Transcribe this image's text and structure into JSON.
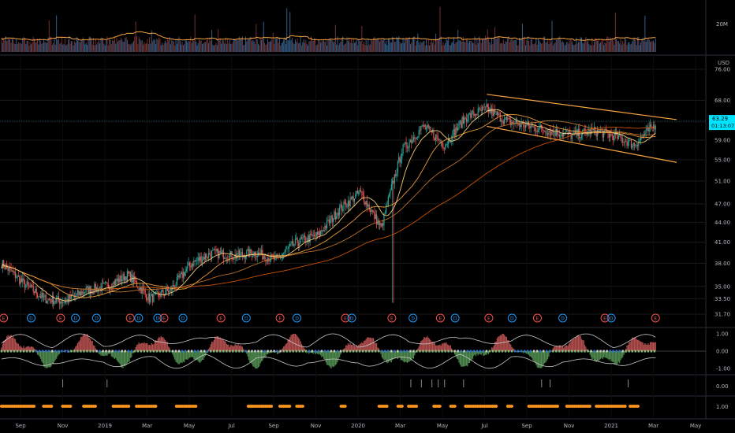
{
  "chart_data": {
    "type": "line",
    "currency": "USD",
    "price_axis": {
      "ticks": [
        31.7,
        33.5,
        35.0,
        38.0,
        41.0,
        44.0,
        47.0,
        51.0,
        55.0,
        59.0,
        63.0,
        68.0,
        76.0
      ],
      "labels": [
        "31.70",
        "33.50",
        "35.00",
        "38.00",
        "41.00",
        "44.00",
        "47.00",
        "51.00",
        "55.00",
        "59.00",
        "63.00",
        "68.00",
        "76.00"
      ],
      "scale": "log"
    },
    "last_price": {
      "value": "63.29",
      "countdown": "01:13:07",
      "color": "#00e5ff"
    },
    "volume_axis": {
      "label": "20M"
    },
    "oscillator_axis": {
      "labels": [
        "1.00",
        "0.00",
        "-1.00"
      ]
    },
    "signal_axis": {
      "label": "0.00"
    },
    "dots_axis": {
      "label": "1.00"
    },
    "time_axis": {
      "labels": [
        "Sep",
        "Nov",
        "2019",
        "Mar",
        "May",
        "Jul",
        "Sep",
        "Nov",
        "2020",
        "Mar",
        "May",
        "Jul",
        "Sep",
        "Nov",
        "2021",
        "Mar",
        "May"
      ]
    },
    "price_series": {
      "name": "",
      "x_month_index": [
        0,
        1,
        2,
        3,
        4,
        5,
        6,
        7,
        8,
        9,
        10,
        11,
        12,
        13,
        14,
        15,
        16,
        17,
        18,
        19,
        20,
        21,
        22,
        23,
        24,
        25,
        26,
        27,
        28,
        29,
        30,
        31
      ],
      "close": [
        38.0,
        35.5,
        33.5,
        33.2,
        34.5,
        35.0,
        36.5,
        33.5,
        34.5,
        38.0,
        39.5,
        39.0,
        39.5,
        38.5,
        41.0,
        42.0,
        46.0,
        49.0,
        43.0,
        57.0,
        62.0,
        58.0,
        64.0,
        66.0,
        63.0,
        62.0,
        61.0,
        60.0,
        61.0,
        60.0,
        58.0,
        62.5
      ]
    },
    "channel": {
      "upper": {
        "from": [
          23.0,
          69.5
        ],
        "to": [
          32.0,
          63.5
        ]
      },
      "lower": {
        "from": [
          23.0,
          62.0
        ],
        "to": [
          32.0,
          54.5
        ]
      },
      "color": "#f7a340"
    },
    "moving_averages": [
      {
        "period": 200,
        "color": "#d35400"
      },
      {
        "period": 100,
        "color": "#c0752e"
      },
      {
        "period": 50,
        "color": "#f2a33c"
      },
      {
        "period": 20,
        "color": "#ffd580"
      }
    ],
    "events": {
      "earnings_label": "E",
      "dividend_label": "D",
      "items": [
        {
          "m": 0.1,
          "t": "E"
        },
        {
          "m": 1.4,
          "t": "D"
        },
        {
          "m": 2.8,
          "t": "E"
        },
        {
          "m": 3.5,
          "t": "D"
        },
        {
          "m": 4.5,
          "t": "D"
        },
        {
          "m": 6.1,
          "t": "E"
        },
        {
          "m": 6.5,
          "t": "D"
        },
        {
          "m": 7.4,
          "t": "D"
        },
        {
          "m": 7.7,
          "t": "E"
        },
        {
          "m": 8.6,
          "t": "D"
        },
        {
          "m": 10.4,
          "t": "E"
        },
        {
          "m": 11.6,
          "t": "D"
        },
        {
          "m": 13.2,
          "t": "E"
        },
        {
          "m": 14.0,
          "t": "D"
        },
        {
          "m": 16.3,
          "t": "E"
        },
        {
          "m": 16.6,
          "t": "D"
        },
        {
          "m": 18.5,
          "t": "E"
        },
        {
          "m": 19.5,
          "t": "D"
        },
        {
          "m": 20.8,
          "t": "E"
        },
        {
          "m": 21.5,
          "t": "D"
        },
        {
          "m": 23.1,
          "t": "E"
        },
        {
          "m": 24.2,
          "t": "D"
        },
        {
          "m": 25.4,
          "t": "E"
        },
        {
          "m": 26.6,
          "t": "D"
        },
        {
          "m": 28.6,
          "t": "E"
        },
        {
          "m": 28.9,
          "t": "D"
        },
        {
          "m": 31.0,
          "t": "E"
        }
      ]
    },
    "colors": {
      "background": "#000000",
      "grid": "#1a1a1a",
      "candle_up": "#26a69a",
      "candle_down": "#ef5350",
      "volume_ma": "#f7a340",
      "osc_pos": "#d35d5d",
      "osc_neg": "#5ea35e",
      "osc_line": "#c9c9c9",
      "dots": "#f7931e",
      "earnings": "#ef5350",
      "dividend": "#2196f3"
    },
    "grid": true
  }
}
